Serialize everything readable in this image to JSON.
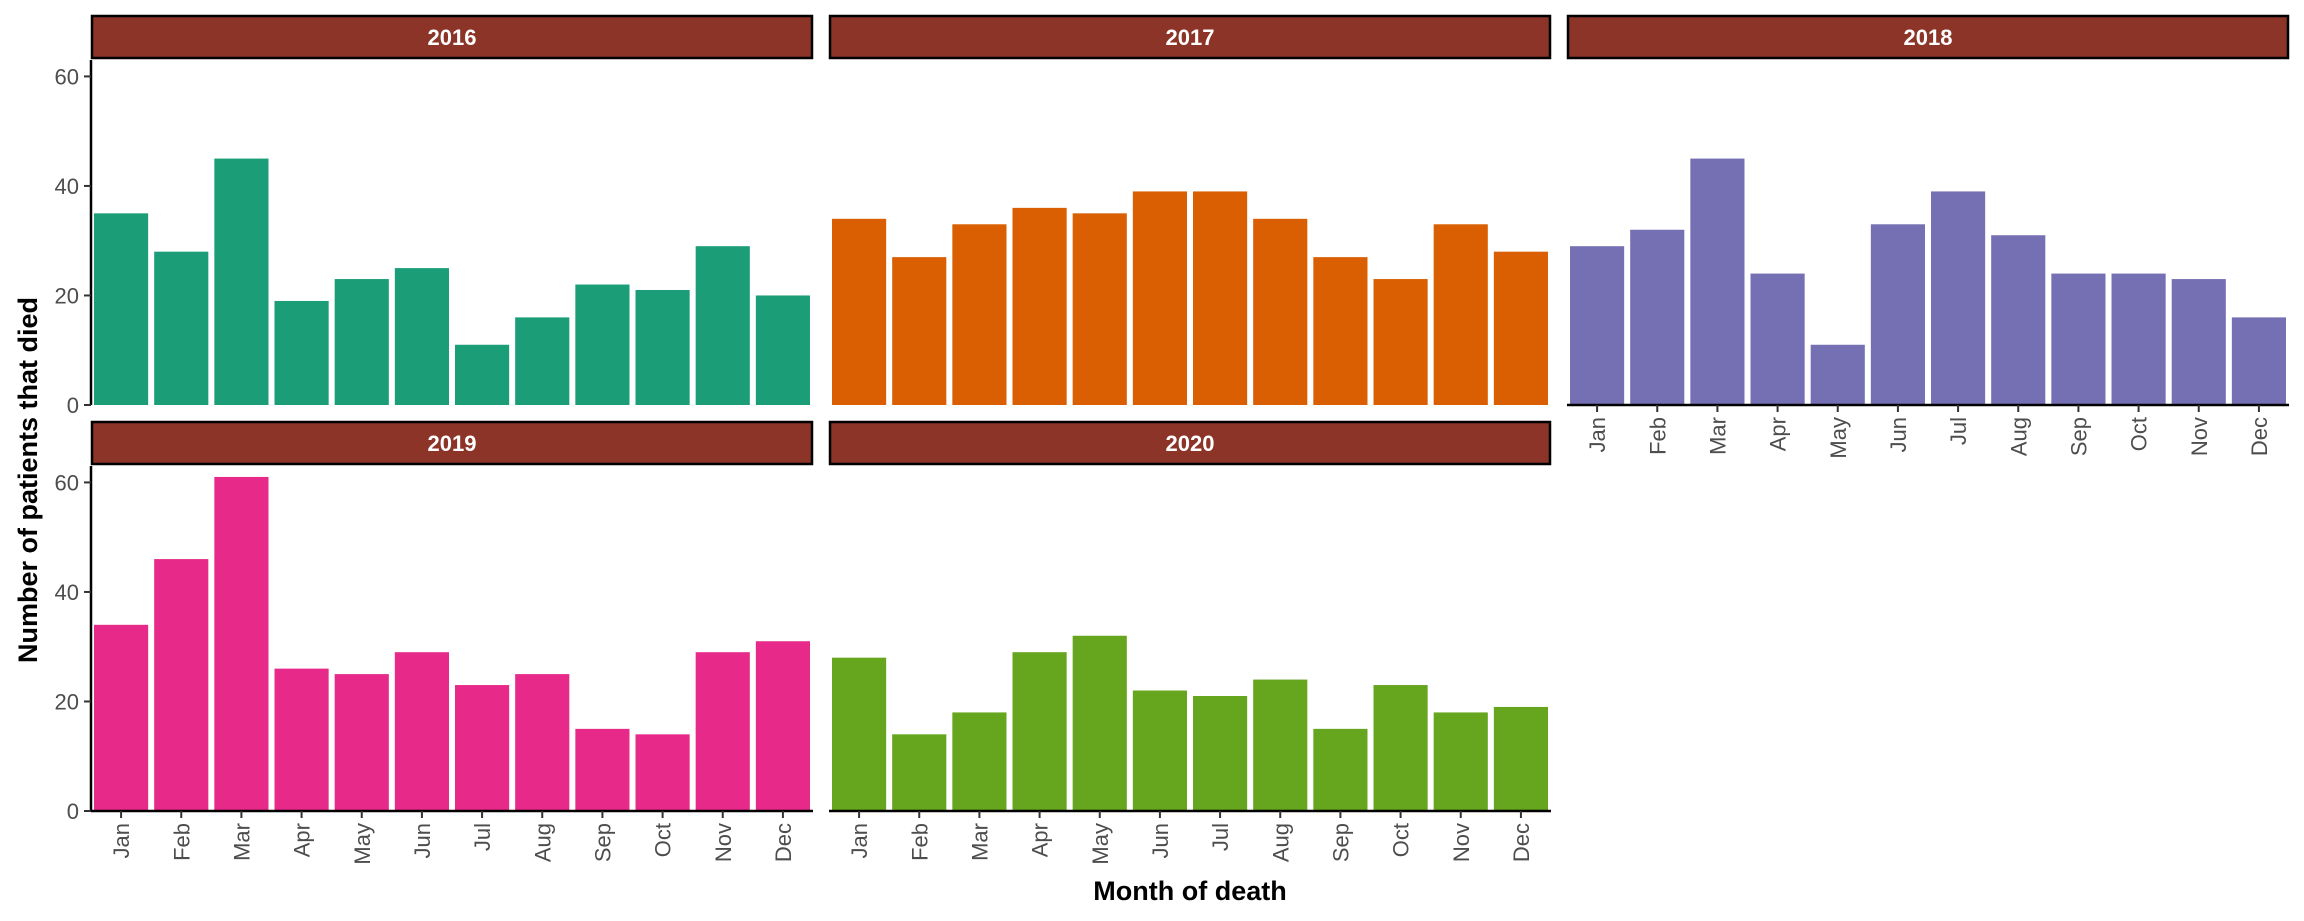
{
  "chart_data": {
    "type": "bar",
    "xlabel": "Month of death",
    "ylabel": "Number of patients that died",
    "ylim": [
      0,
      63
    ],
    "yticks": [
      "0",
      "20",
      "40",
      "60"
    ],
    "categories": [
      "Jan",
      "Feb",
      "Mar",
      "Apr",
      "May",
      "Jun",
      "Jul",
      "Aug",
      "Sep",
      "Oct",
      "Nov",
      "Dec"
    ],
    "strip_color": "#8B3427",
    "grid": false,
    "panels": [
      {
        "name": "2016",
        "color": "#1B9E77",
        "values": [
          35,
          28,
          45,
          19,
          23,
          25,
          11,
          16,
          22,
          21,
          29,
          20
        ]
      },
      {
        "name": "2017",
        "color": "#D95F02",
        "values": [
          34,
          27,
          33,
          36,
          35,
          39,
          39,
          34,
          27,
          23,
          33,
          28
        ]
      },
      {
        "name": "2018",
        "color": "#7570B3",
        "values": [
          29,
          32,
          45,
          24,
          11,
          33,
          39,
          31,
          24,
          24,
          23,
          16
        ]
      },
      {
        "name": "2019",
        "color": "#E7298A",
        "values": [
          34,
          46,
          61,
          26,
          25,
          29,
          23,
          25,
          15,
          14,
          29,
          31
        ]
      },
      {
        "name": "2020",
        "color": "#66A61E",
        "values": [
          28,
          14,
          18,
          29,
          32,
          22,
          21,
          24,
          15,
          23,
          18,
          19
        ]
      }
    ]
  }
}
